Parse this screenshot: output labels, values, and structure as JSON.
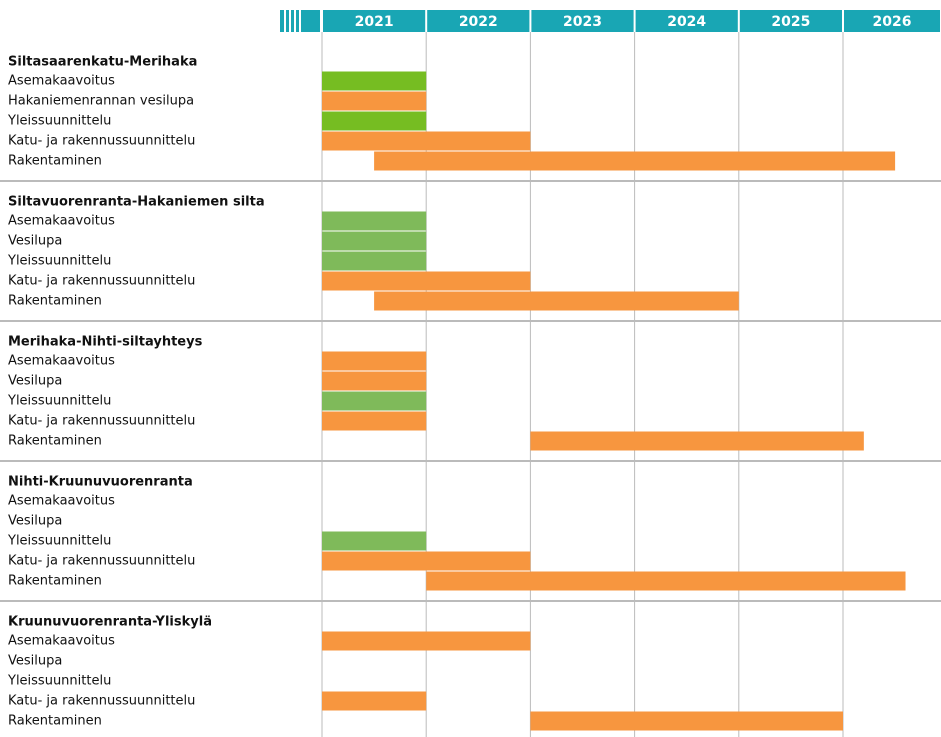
{
  "chart_data": {
    "type": "gantt",
    "xlim": [
      2021,
      2027
    ],
    "xticks": [
      2021,
      2022,
      2023,
      2024,
      2025,
      2026
    ],
    "header_color": "#19a6b4",
    "grid": true,
    "groups": [
      {
        "name": "Siltasaarenkatu-Merihaka",
        "tasks": [
          {
            "name": "Asemakaavoitus",
            "start": 2021,
            "end": 2022,
            "color": "#76bd22"
          },
          {
            "name": "Hakaniemenrannan vesilupa",
            "start": 2021,
            "end": 2022,
            "color": "#f7963f"
          },
          {
            "name": "Yleissuunnittelu",
            "start": 2021,
            "end": 2022,
            "color": "#76bd22"
          },
          {
            "name": "Katu- ja rakennussuunnittelu",
            "start": 2021,
            "end": 2023,
            "color": "#f7963f"
          },
          {
            "name": "Rakentaminen",
            "start": 2021.5,
            "end": 2026.5,
            "color": "#f7963f"
          }
        ]
      },
      {
        "name": "Siltavuorenranta-Hakaniemen silta",
        "tasks": [
          {
            "name": "Asemakaavoitus",
            "start": 2021,
            "end": 2022,
            "color": "#7fba5a"
          },
          {
            "name": "Vesilupa",
            "start": 2021,
            "end": 2022,
            "color": "#7fba5a"
          },
          {
            "name": "Yleissuunnittelu",
            "start": 2021,
            "end": 2022,
            "color": "#7fba5a"
          },
          {
            "name": "Katu- ja rakennussuunnittelu",
            "start": 2021,
            "end": 2023,
            "color": "#f7963f"
          },
          {
            "name": "Rakentaminen",
            "start": 2021.5,
            "end": 2025,
            "color": "#f7963f"
          }
        ]
      },
      {
        "name": "Merihaka-Nihti-siltayhteys",
        "tasks": [
          {
            "name": "Asemakaavoitus",
            "start": 2021,
            "end": 2022,
            "color": "#f7963f"
          },
          {
            "name": "Vesilupa",
            "start": 2021,
            "end": 2022,
            "color": "#f7963f"
          },
          {
            "name": "Yleissuunnittelu",
            "start": 2021,
            "end": 2022,
            "color": "#7fba5a"
          },
          {
            "name": "Katu- ja rakennussuunnittelu",
            "start": 2021,
            "end": 2022,
            "color": "#f7963f"
          },
          {
            "name": "Rakentaminen",
            "start": 2023,
            "end": 2026.2,
            "color": "#f7963f"
          }
        ]
      },
      {
        "name": "Nihti-Kruunuvuorenranta",
        "tasks": [
          {
            "name": "Asemakaavoitus"
          },
          {
            "name": "Vesilupa"
          },
          {
            "name": "Yleissuunnittelu",
            "start": 2021,
            "end": 2022,
            "color": "#7fba5a"
          },
          {
            "name": "Katu- ja rakennussuunnittelu",
            "start": 2021,
            "end": 2023,
            "color": "#f7963f"
          },
          {
            "name": "Rakentaminen",
            "start": 2022,
            "end": 2026.6,
            "color": "#f7963f"
          }
        ]
      },
      {
        "name": "Kruunuvuorenranta-Yliskylä",
        "tasks": [
          {
            "name": "Asemakaavoitus",
            "start": 2021,
            "end": 2023,
            "color": "#f7963f"
          },
          {
            "name": "Vesilupa"
          },
          {
            "name": "Yleissuunnittelu"
          },
          {
            "name": "Katu- ja rakennussuunnittelu",
            "start": 2021,
            "end": 2022,
            "color": "#f7963f"
          },
          {
            "name": "Rakentaminen",
            "start": 2023,
            "end": 2026,
            "color": "#f7963f"
          }
        ]
      }
    ]
  }
}
